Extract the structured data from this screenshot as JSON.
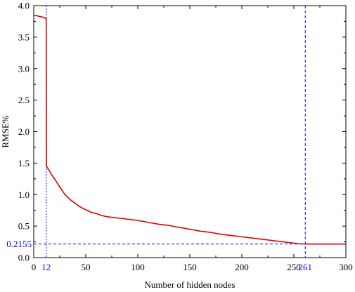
{
  "chart_data": {
    "type": "line",
    "title": "",
    "xlabel": "Number of hidden nodes",
    "ylabel": "RMSE%",
    "xlim": [
      0,
      300
    ],
    "ylim": [
      0.0,
      4.0
    ],
    "grid": false,
    "x_ticks": [
      0,
      50,
      100,
      150,
      200,
      250,
      300
    ],
    "x_tick_labels": [
      "0",
      "50",
      "100",
      "150",
      "200",
      "250",
      "300"
    ],
    "y_ticks": [
      0.0,
      0.5,
      1.0,
      1.5,
      2.0,
      2.5,
      3.0,
      3.5,
      4.0
    ],
    "y_tick_labels": [
      "0.0",
      "0.5",
      "1.0",
      "1.5",
      "2.0",
      "2.5",
      "3.0",
      "3.5",
      "4.0"
    ],
    "series": [
      {
        "color": "#e00000",
        "x": [
          0,
          3,
          5,
          8,
          10,
          11,
          12,
          12.2,
          13,
          15,
          17,
          20,
          22,
          25,
          28,
          30,
          35,
          40,
          45,
          50,
          55,
          60,
          65,
          70,
          75,
          80,
          90,
          100,
          110,
          120,
          130,
          140,
          150,
          160,
          170,
          180,
          190,
          200,
          210,
          220,
          230,
          240,
          250,
          255,
          261,
          270,
          280,
          290,
          300
        ],
        "y": [
          3.84,
          3.84,
          3.83,
          3.82,
          3.81,
          3.8,
          3.8,
          1.45,
          1.43,
          1.38,
          1.32,
          1.25,
          1.2,
          1.12,
          1.05,
          1.0,
          0.92,
          0.86,
          0.8,
          0.76,
          0.72,
          0.7,
          0.67,
          0.65,
          0.64,
          0.63,
          0.61,
          0.59,
          0.56,
          0.53,
          0.51,
          0.48,
          0.45,
          0.42,
          0.4,
          0.37,
          0.35,
          0.33,
          0.31,
          0.29,
          0.27,
          0.25,
          0.23,
          0.22,
          0.2155,
          0.2155,
          0.2155,
          0.2155,
          0.2155
        ]
      }
    ],
    "annotations": {
      "vline_a": {
        "x": 12,
        "label": "12",
        "color": "#0000ff"
      },
      "vline_b": {
        "x": 261,
        "label": "261",
        "color": "#0000ff"
      },
      "hline": {
        "y": 0.2155,
        "label": "0.2155",
        "color": "#0000ff"
      }
    }
  }
}
